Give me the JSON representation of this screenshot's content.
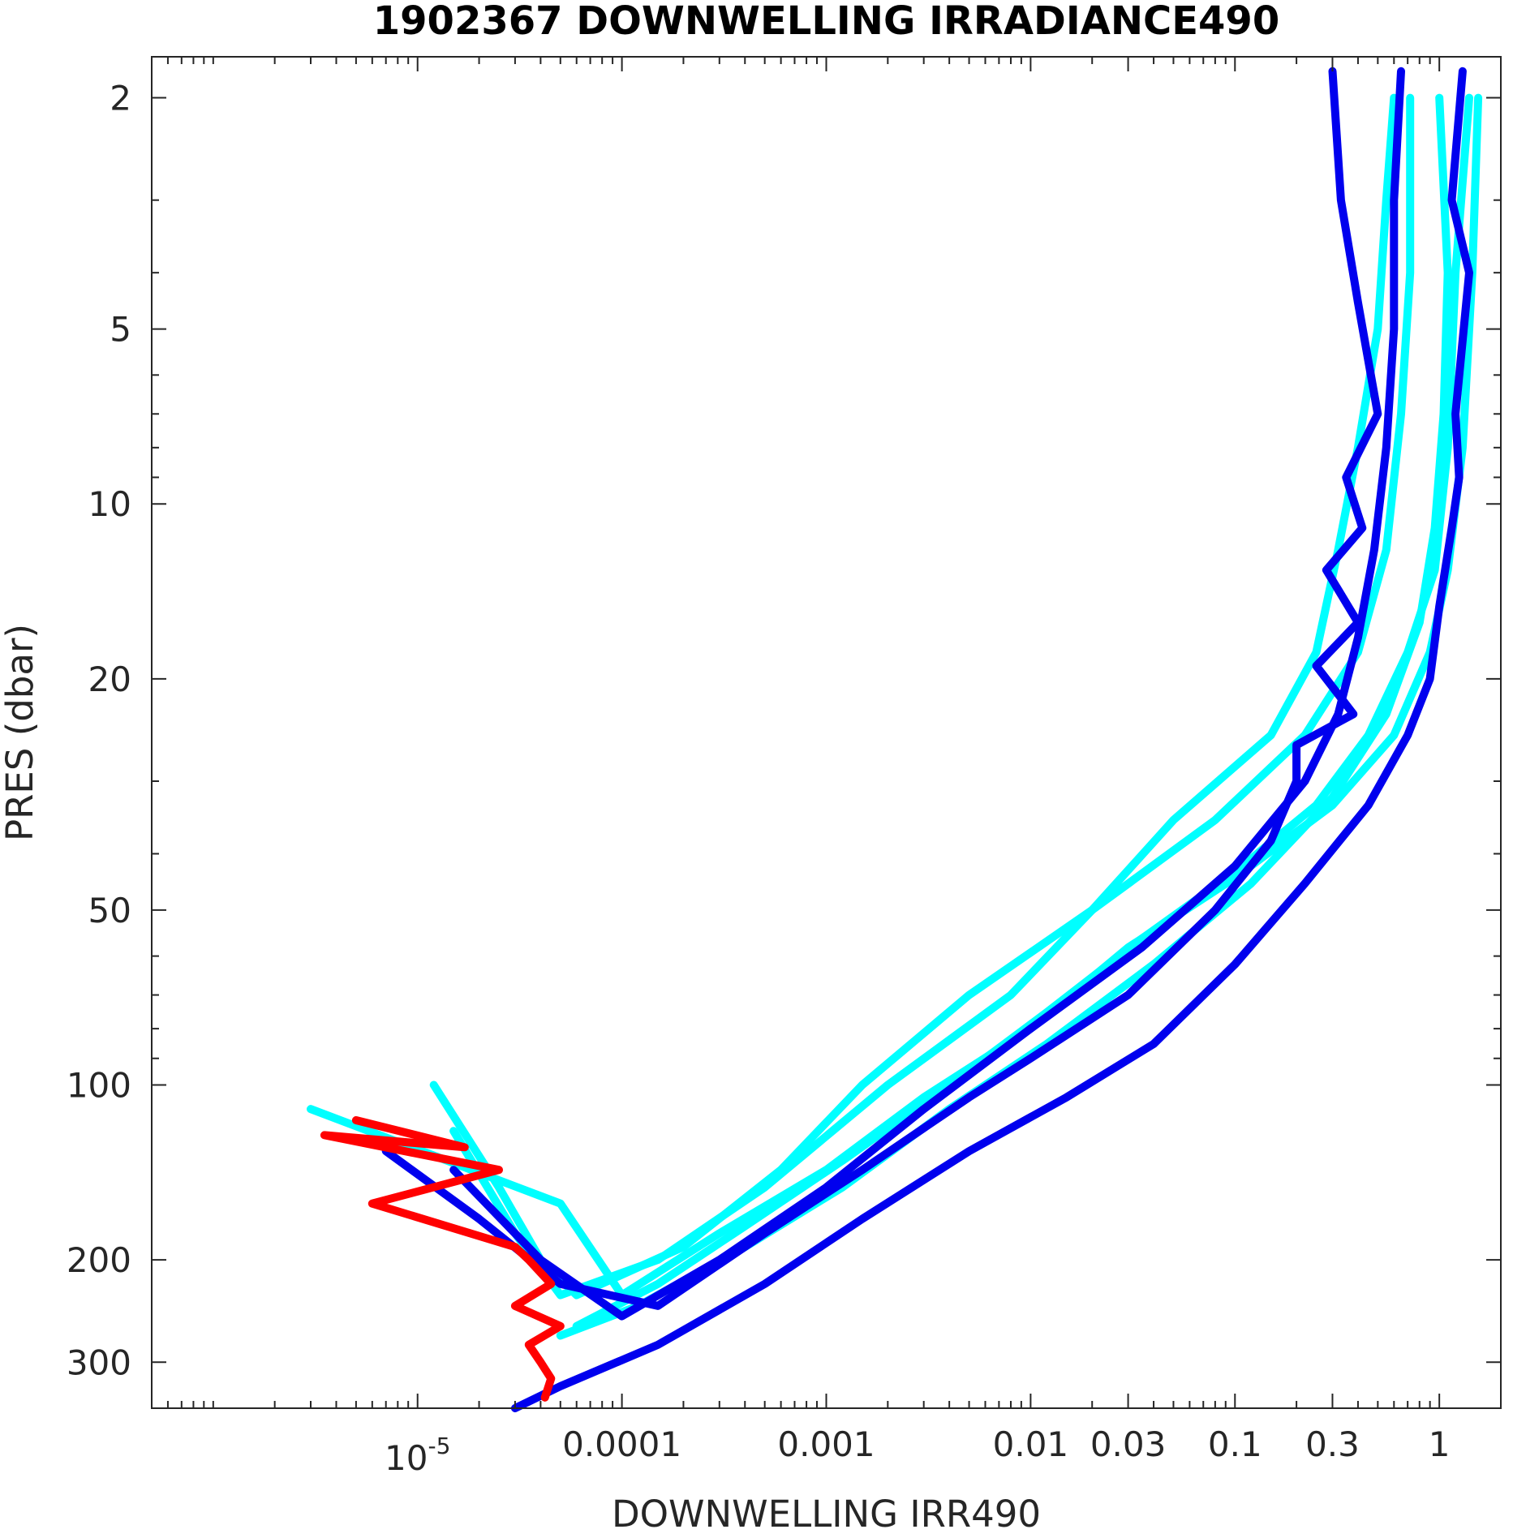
{
  "chart_data": {
    "type": "line",
    "title": "1902367  DOWNWELLING IRRADIANCE490",
    "xlabel": "DOWNWELLING IRR490",
    "ylabel": "PRES (dbar)",
    "xscale": "log",
    "yscale": "log",
    "y_reversed": true,
    "xlim": [
      5e-07,
      2.0
    ],
    "ylim": [
      1.7,
      360
    ],
    "grid": false,
    "legend": "none",
    "colors": {
      "cyan": "#00ffff",
      "blue": "#0000ee",
      "red": "#ff0000"
    },
    "x_ticks": [
      {
        "value": 1e-05,
        "label": "10",
        "exp": "-5"
      },
      {
        "value": 0.0001,
        "label": "0.0001"
      },
      {
        "value": 0.001,
        "label": "0.001"
      },
      {
        "value": 0.01,
        "label": "0.01"
      },
      {
        "value": 0.03,
        "label": "0.03"
      },
      {
        "value": 0.1,
        "label": "0.1"
      },
      {
        "value": 0.3,
        "label": "0.3"
      },
      {
        "value": 1,
        "label": "1"
      }
    ],
    "y_ticks": [
      {
        "value": 2,
        "label": "2"
      },
      {
        "value": 5,
        "label": "5"
      },
      {
        "value": 10,
        "label": "10"
      },
      {
        "value": 20,
        "label": "20"
      },
      {
        "value": 50,
        "label": "50"
      },
      {
        "value": 100,
        "label": "100"
      },
      {
        "value": 200,
        "label": "200"
      },
      {
        "value": 300,
        "label": "300"
      }
    ],
    "series": [
      {
        "color": "cyan",
        "x": [
          0.6,
          0.55,
          0.5,
          0.4,
          0.32,
          0.25,
          0.15,
          0.05,
          0.02,
          0.008,
          0.002,
          0.0005,
          0.00015,
          5e-05,
          3e-05,
          1.5e-05
        ],
        "y": [
          2,
          3,
          5,
          8,
          12,
          18,
          25,
          35,
          50,
          70,
          100,
          150,
          200,
          230,
          180,
          120
        ]
      },
      {
        "color": "cyan",
        "x": [
          0.72,
          0.72,
          0.65,
          0.55,
          0.4,
          0.22,
          0.08,
          0.02,
          0.005,
          0.0015,
          0.0006,
          0.0002,
          6e-05,
          4e-05,
          2.5e-05,
          1.2e-05
        ],
        "y": [
          2,
          4,
          7,
          12,
          18,
          25,
          35,
          50,
          70,
          100,
          140,
          190,
          230,
          200,
          150,
          100
        ]
      },
      {
        "color": "cyan",
        "x": [
          1.0,
          1.1,
          1.05,
          0.95,
          0.8,
          0.55,
          0.3,
          0.12,
          0.04,
          0.012,
          0.004,
          0.0012,
          0.0004,
          0.00012,
          5e-05
        ],
        "y": [
          2,
          4,
          7,
          11,
          16,
          23,
          32,
          45,
          62,
          85,
          110,
          150,
          190,
          240,
          270
        ]
      },
      {
        "color": "cyan",
        "x": [
          1.4,
          1.2,
          1.1,
          0.95,
          0.7,
          0.45,
          0.25,
          0.1,
          0.035,
          0.012,
          0.004,
          0.0012,
          0.0004,
          0.00015,
          6e-05
        ],
        "y": [
          2,
          4,
          8,
          13,
          18,
          25,
          33,
          43,
          56,
          75,
          100,
          135,
          175,
          220,
          260
        ]
      },
      {
        "color": "cyan",
        "x": [
          1.55,
          1.45,
          1.3,
          1.1,
          0.9,
          0.6,
          0.3,
          0.1,
          0.03,
          0.01,
          0.003,
          0.001,
          0.0003,
          0.0001,
          5e-05,
          3e-06
        ],
        "y": [
          2,
          4,
          8,
          13,
          18,
          25,
          33,
          44,
          58,
          80,
          105,
          140,
          180,
          230,
          160,
          110
        ]
      },
      {
        "color": "blue",
        "x": [
          0.3,
          0.33,
          0.4,
          0.5,
          0.35,
          0.42,
          0.28,
          0.4,
          0.25,
          0.38,
          0.2,
          0.2,
          0.15,
          0.08,
          0.03,
          0.01,
          0.005,
          0.0015,
          0.0005,
          0.00015,
          5e-05,
          2e-05,
          7e-06
        ],
        "y": [
          1.8,
          3,
          4.5,
          7,
          9,
          11,
          13,
          16,
          19,
          23,
          26,
          30,
          38,
          50,
          70,
          90,
          105,
          140,
          180,
          240,
          220,
          170,
          130
        ]
      },
      {
        "color": "blue",
        "x": [
          0.65,
          0.6,
          0.6,
          0.55,
          0.48,
          0.4,
          0.32,
          0.22,
          0.1,
          0.035,
          0.01,
          0.003,
          0.001,
          0.0003,
          0.0001,
          4e-05,
          1.5e-05
        ],
        "y": [
          1.8,
          3,
          5,
          8,
          12,
          17,
          23,
          30,
          42,
          58,
          80,
          110,
          150,
          200,
          250,
          200,
          140
        ]
      },
      {
        "color": "blue",
        "x": [
          1.3,
          1.15,
          1.4,
          1.2,
          1.25,
          1.15,
          1.0,
          0.9,
          0.7,
          0.45,
          0.22,
          0.1,
          0.04,
          0.015,
          0.005,
          0.0015,
          0.0005,
          0.00015,
          5e-05,
          3e-05
        ],
        "y": [
          1.8,
          3,
          4,
          7,
          9,
          11,
          15,
          20,
          25,
          33,
          45,
          62,
          85,
          105,
          130,
          170,
          220,
          280,
          330,
          360
        ]
      },
      {
        "color": "red",
        "x": [
          5e-06,
          1.7e-05,
          3.5e-06,
          2.5e-05,
          6e-06,
          3e-05,
          3.5e-05,
          4.5e-05,
          3e-05,
          5e-05,
          3.5e-05,
          4e-05,
          4.5e-05,
          4.2e-05
        ],
        "y": [
          115,
          128,
          122,
          140,
          160,
          190,
          200,
          220,
          240,
          260,
          280,
          300,
          320,
          345
        ]
      }
    ]
  }
}
